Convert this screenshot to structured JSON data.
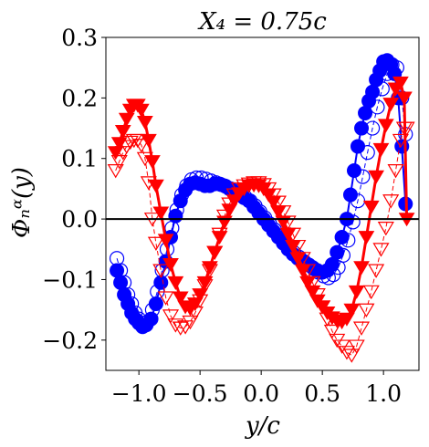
{
  "chart_data": {
    "type": "line",
    "title": "X₄ = 0.75c",
    "xlabel": "y/c",
    "ylabel": "Φₙᵅ(y)",
    "xlim": [
      -1.27,
      1.29
    ],
    "ylim": [
      -0.25,
      0.3
    ],
    "xticks": [
      -1.0,
      -0.5,
      0.0,
      0.5,
      1.0
    ],
    "xtick_labels": [
      "−1.0",
      "−0.5",
      "0.0",
      "0.5",
      "1.0"
    ],
    "yticks": [
      -0.2,
      -0.1,
      0.0,
      0.1,
      0.2,
      0.3
    ],
    "ytick_labels": [
      "−0.2",
      "−0.1",
      "0.0",
      "0.1",
      "0.2",
      "0.3"
    ],
    "zero_line": true,
    "grid": false,
    "colors": {
      "blue": "#0000ff",
      "red": "#ff0000",
      "axis": "#000000"
    },
    "series": [
      {
        "marker": "circle-filled",
        "color": "#0000ff",
        "line": "solid",
        "x": [
          -1.18,
          -1.15,
          -1.12,
          -1.09,
          -1.06,
          -1.03,
          -1.0,
          -0.97,
          -0.94,
          -0.9,
          -0.86,
          -0.82,
          -0.78,
          -0.74,
          -0.7,
          -0.66,
          -0.62,
          -0.58,
          -0.54,
          -0.5,
          -0.46,
          -0.42,
          -0.38,
          -0.34,
          -0.3,
          -0.26,
          -0.22,
          -0.18,
          -0.14,
          -0.1,
          -0.06,
          -0.02,
          0.02,
          0.06,
          0.1,
          0.14,
          0.18,
          0.22,
          0.26,
          0.3,
          0.34,
          0.38,
          0.42,
          0.46,
          0.5,
          0.54,
          0.58,
          0.62,
          0.66,
          0.7,
          0.73,
          0.76,
          0.79,
          0.82,
          0.85,
          0.88,
          0.91,
          0.94,
          0.97,
          1.0,
          1.03,
          1.06,
          1.09,
          1.12,
          1.15,
          1.18
        ],
        "y": [
          -0.085,
          -0.105,
          -0.125,
          -0.14,
          -0.155,
          -0.165,
          -0.172,
          -0.178,
          -0.175,
          -0.165,
          -0.14,
          -0.105,
          -0.07,
          -0.03,
          0.005,
          0.03,
          0.048,
          0.058,
          0.06,
          0.058,
          0.055,
          0.055,
          0.058,
          0.058,
          0.055,
          0.05,
          0.045,
          0.04,
          0.035,
          0.03,
          0.02,
          0.01,
          0.0,
          -0.01,
          -0.02,
          -0.03,
          -0.04,
          -0.05,
          -0.058,
          -0.065,
          -0.07,
          -0.075,
          -0.08,
          -0.085,
          -0.088,
          -0.085,
          -0.075,
          -0.055,
          -0.03,
          0.0,
          0.04,
          0.08,
          0.12,
          0.15,
          0.175,
          0.195,
          0.21,
          0.23,
          0.245,
          0.26,
          0.262,
          0.255,
          0.24,
          0.2,
          0.12,
          0.025
        ]
      },
      {
        "marker": "circle-open",
        "color": "#0000ff",
        "line": "dashed",
        "x": [
          -1.18,
          -1.15,
          -1.12,
          -1.09,
          -1.06,
          -1.03,
          -1.0,
          -0.97,
          -0.93,
          -0.89,
          -0.85,
          -0.81,
          -0.77,
          -0.73,
          -0.69,
          -0.65,
          -0.61,
          -0.57,
          -0.53,
          -0.49,
          -0.45,
          -0.41,
          -0.37,
          -0.33,
          -0.29,
          -0.25,
          -0.21,
          -0.17,
          -0.13,
          -0.09,
          -0.05,
          -0.01,
          0.03,
          0.07,
          0.11,
          0.15,
          0.19,
          0.23,
          0.27,
          0.31,
          0.35,
          0.39,
          0.43,
          0.47,
          0.51,
          0.55,
          0.59,
          0.63,
          0.67,
          0.71,
          0.75,
          0.79,
          0.83,
          0.87,
          0.91,
          0.95,
          0.99,
          1.03,
          1.07,
          1.11,
          1.15,
          1.18
        ],
        "y": [
          -0.065,
          -0.085,
          -0.105,
          -0.125,
          -0.14,
          -0.155,
          -0.165,
          -0.172,
          -0.17,
          -0.15,
          -0.12,
          -0.085,
          -0.05,
          -0.015,
          0.015,
          0.04,
          0.055,
          0.065,
          0.068,
          0.068,
          0.066,
          0.063,
          0.06,
          0.057,
          0.054,
          0.05,
          0.046,
          0.042,
          0.036,
          0.03,
          0.022,
          0.012,
          0.002,
          -0.008,
          -0.018,
          -0.028,
          -0.038,
          -0.048,
          -0.056,
          -0.063,
          -0.07,
          -0.076,
          -0.082,
          -0.088,
          -0.094,
          -0.097,
          -0.092,
          -0.08,
          -0.06,
          -0.035,
          -0.005,
          0.03,
          0.07,
          0.11,
          0.15,
          0.185,
          0.215,
          0.24,
          0.255,
          0.25,
          0.2,
          0.14
        ]
      },
      {
        "marker": "triangle-down-filled",
        "color": "#ff0000",
        "line": "solid",
        "x": [
          -1.19,
          -1.16,
          -1.13,
          -1.1,
          -1.07,
          -1.04,
          -1.01,
          -0.98,
          -0.95,
          -0.92,
          -0.89,
          -0.86,
          -0.82,
          -0.78,
          -0.74,
          -0.7,
          -0.66,
          -0.62,
          -0.58,
          -0.54,
          -0.5,
          -0.46,
          -0.42,
          -0.38,
          -0.34,
          -0.3,
          -0.26,
          -0.22,
          -0.18,
          -0.14,
          -0.1,
          -0.06,
          -0.02,
          0.02,
          0.06,
          0.1,
          0.14,
          0.18,
          0.22,
          0.26,
          0.3,
          0.34,
          0.38,
          0.42,
          0.46,
          0.5,
          0.54,
          0.58,
          0.62,
          0.66,
          0.7,
          0.74,
          0.78,
          0.82,
          0.86,
          0.9,
          0.94,
          0.98,
          1.02,
          1.06,
          1.1,
          1.14,
          1.17,
          1.19
        ],
        "y": [
          0.11,
          0.125,
          0.145,
          0.165,
          0.18,
          0.188,
          0.188,
          0.18,
          0.16,
          0.13,
          0.095,
          0.055,
          0.01,
          -0.035,
          -0.075,
          -0.105,
          -0.13,
          -0.145,
          -0.148,
          -0.14,
          -0.125,
          -0.105,
          -0.08,
          -0.055,
          -0.03,
          -0.005,
          0.015,
          0.03,
          0.042,
          0.05,
          0.055,
          0.056,
          0.055,
          0.05,
          0.04,
          0.028,
          0.012,
          -0.005,
          -0.025,
          -0.045,
          -0.065,
          -0.085,
          -0.105,
          -0.12,
          -0.135,
          -0.145,
          -0.155,
          -0.163,
          -0.168,
          -0.17,
          -0.165,
          -0.15,
          -0.12,
          -0.08,
          -0.03,
          0.02,
          0.07,
          0.115,
          0.155,
          0.19,
          0.215,
          0.225,
          0.2,
          0.0
        ]
      },
      {
        "marker": "triangle-down-open",
        "color": "#ff0000",
        "line": "dashed",
        "x": [
          -1.19,
          -1.16,
          -1.13,
          -1.1,
          -1.07,
          -1.04,
          -1.01,
          -0.98,
          -0.95,
          -0.92,
          -0.89,
          -0.86,
          -0.82,
          -0.78,
          -0.74,
          -0.7,
          -0.66,
          -0.62,
          -0.58,
          -0.54,
          -0.5,
          -0.46,
          -0.42,
          -0.38,
          -0.34,
          -0.3,
          -0.26,
          -0.22,
          -0.18,
          -0.14,
          -0.1,
          -0.06,
          -0.02,
          0.02,
          0.06,
          0.1,
          0.14,
          0.18,
          0.22,
          0.26,
          0.3,
          0.34,
          0.38,
          0.42,
          0.46,
          0.5,
          0.54,
          0.58,
          0.62,
          0.66,
          0.7,
          0.74,
          0.78,
          0.82,
          0.86,
          0.9,
          0.94,
          0.98,
          1.02,
          1.06,
          1.1,
          1.14,
          1.17,
          1.19
        ],
        "y": [
          0.08,
          0.095,
          0.11,
          0.12,
          0.127,
          0.13,
          0.13,
          0.122,
          0.1,
          0.06,
          0.0,
          -0.04,
          -0.085,
          -0.13,
          -0.16,
          -0.175,
          -0.18,
          -0.178,
          -0.17,
          -0.155,
          -0.135,
          -0.11,
          -0.085,
          -0.055,
          -0.025,
          0.005,
          0.025,
          0.04,
          0.05,
          0.055,
          0.058,
          0.06,
          0.06,
          0.057,
          0.05,
          0.04,
          0.028,
          0.012,
          -0.005,
          -0.025,
          -0.045,
          -0.065,
          -0.085,
          -0.105,
          -0.125,
          -0.145,
          -0.165,
          -0.185,
          -0.2,
          -0.21,
          -0.22,
          -0.225,
          -0.21,
          -0.18,
          -0.15,
          -0.12,
          -0.085,
          -0.05,
          -0.015,
          0.03,
          0.08,
          0.13,
          0.15,
          0.15
        ]
      }
    ]
  }
}
